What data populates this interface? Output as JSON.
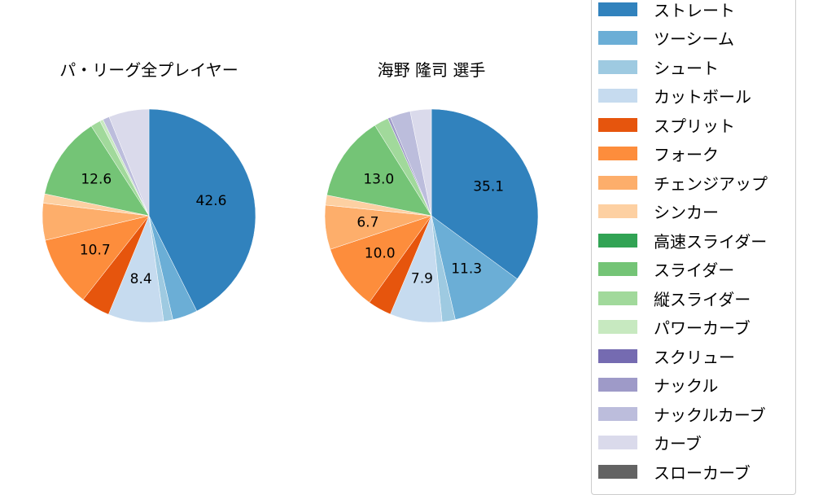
{
  "chart_data": [
    {
      "type": "pie",
      "title": "パ・リーグ全プレイヤー",
      "categories": [
        "ストレート",
        "ツーシーム",
        "シュート",
        "カットボール",
        "スプリット",
        "フォーク",
        "チェンジアップ",
        "シンカー",
        "高速スライダー",
        "スライダー",
        "縦スライダー",
        "パワーカーブ",
        "スクリュー",
        "ナックル",
        "ナックルカーブ",
        "カーブ",
        "スローカーブ"
      ],
      "values": [
        42.6,
        3.8,
        1.4,
        8.4,
        4.4,
        10.7,
        5.6,
        1.4,
        0.0,
        12.6,
        1.5,
        0.5,
        0.0,
        0.0,
        1.0,
        6.1,
        0.0
      ],
      "labeled_values": {
        "ストレート": 42.6,
        "カットボール": 8.4,
        "フォーク": 10.7,
        "スライダー": 12.6
      },
      "start_angle": 90,
      "direction": "clockwise"
    },
    {
      "type": "pie",
      "title": "海野 隆司  選手",
      "categories": [
        "ストレート",
        "ツーシーム",
        "シュート",
        "カットボール",
        "スプリット",
        "フォーク",
        "チェンジアップ",
        "シンカー",
        "高速スライダー",
        "スライダー",
        "縦スライダー",
        "パワーカーブ",
        "スクリュー",
        "ナックル",
        "ナックルカーブ",
        "カーブ",
        "スローカーブ"
      ],
      "values": [
        35.1,
        11.3,
        2.0,
        7.9,
        3.6,
        10.0,
        6.7,
        1.5,
        0.0,
        13.0,
        2.2,
        0.0,
        0.0,
        0.4,
        3.1,
        3.2,
        0.0
      ],
      "labeled_values": {
        "ストレート": 35.1,
        "ツーシーム": 11.3,
        "カットボール": 7.9,
        "フォーク": 10.0,
        "チェンジアップ": 6.7,
        "スライダー": 13.0
      },
      "start_angle": 90,
      "direction": "clockwise"
    }
  ],
  "titles": {
    "left": "パ・リーグ全プレイヤー",
    "right": "海野 隆司  選手"
  },
  "legend": {
    "items": [
      {
        "label": "ストレート",
        "color": "#3182bd"
      },
      {
        "label": "ツーシーム",
        "color": "#6baed6"
      },
      {
        "label": "シュート",
        "color": "#9ecae1"
      },
      {
        "label": "カットボール",
        "color": "#c6dbef"
      },
      {
        "label": "スプリット",
        "color": "#e6550d"
      },
      {
        "label": "フォーク",
        "color": "#fd8d3c"
      },
      {
        "label": "チェンジアップ",
        "color": "#fdae6b"
      },
      {
        "label": "シンカー",
        "color": "#fdd0a2"
      },
      {
        "label": "高速スライダー",
        "color": "#31a354"
      },
      {
        "label": "スライダー",
        "color": "#74c476"
      },
      {
        "label": "縦スライダー",
        "color": "#a1d99b"
      },
      {
        "label": "パワーカーブ",
        "color": "#c7e9c0"
      },
      {
        "label": "スクリュー",
        "color": "#756bb1"
      },
      {
        "label": "ナックル",
        "color": "#9e9ac8"
      },
      {
        "label": "ナックルカーブ",
        "color": "#bcbddc"
      },
      {
        "label": "カーブ",
        "color": "#dadaeb"
      },
      {
        "label": "スローカーブ",
        "color": "#636363"
      }
    ]
  }
}
